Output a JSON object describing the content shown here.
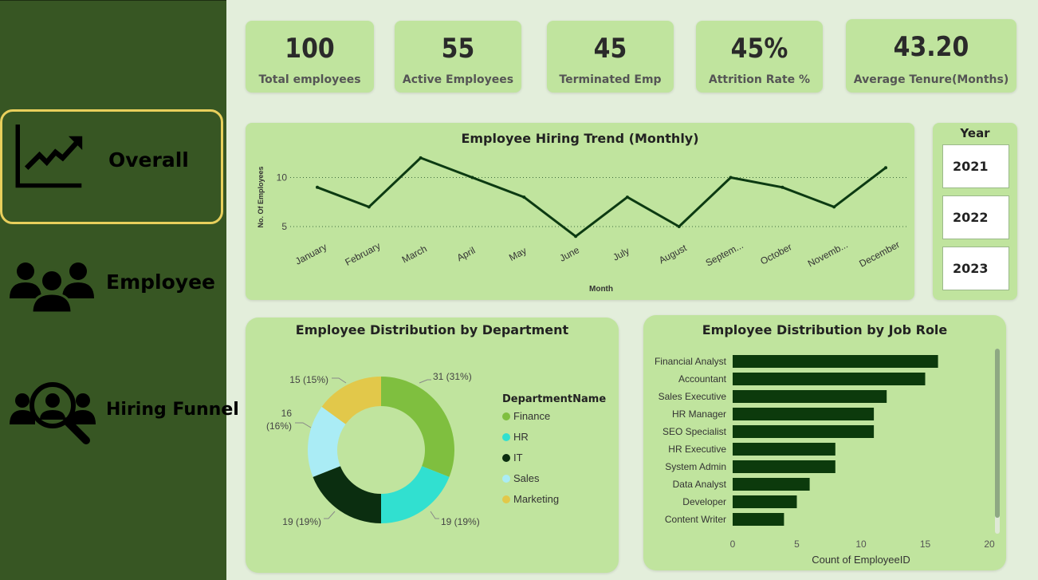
{
  "nav": {
    "overall": {
      "label": "Overall",
      "icon": "trend-chart-icon"
    },
    "employee": {
      "label": "Employee",
      "icon": "people-group-icon"
    },
    "hiring": {
      "label": "Hiring Funnel",
      "icon": "people-search-icon"
    }
  },
  "kpis": [
    {
      "value": "100",
      "label": "Total employees"
    },
    {
      "value": "55",
      "label": "Active Employees"
    },
    {
      "value": "45",
      "label": "Terminated Emp"
    },
    {
      "value": "45%",
      "label": "Attrition Rate %"
    },
    {
      "value": "43.20",
      "label": "Average Tenure(Months)"
    }
  ],
  "year_slicer": {
    "title": "Year",
    "options": [
      "2021",
      "2022",
      "2023"
    ]
  },
  "colors": {
    "sidebar": "#375623",
    "card": "#c0e49e",
    "line": "#0c3a12",
    "bar": "#0c3a0c",
    "active_border": "#e8cf5c"
  },
  "chart_data": [
    {
      "type": "line",
      "title": "Employee Hiring Trend (Monthly)",
      "xlabel": "Month",
      "ylabel": "No. Of Employees",
      "categories": [
        "January",
        "February",
        "March",
        "April",
        "May",
        "June",
        "July",
        "August",
        "Septem...",
        "October",
        "Novemb...",
        "December"
      ],
      "values": [
        9,
        7,
        12,
        10,
        8,
        4,
        8,
        5,
        10,
        9,
        7,
        11
      ],
      "yticks": [
        5,
        10
      ],
      "grid": "dotted"
    },
    {
      "type": "pie",
      "title": "Employee Distribution by Department",
      "legend_title": "DepartmentName",
      "legend_position": "right",
      "series": [
        {
          "name": "Finance",
          "value": 31,
          "label": "31 (31%)",
          "color": "#7fbf3f"
        },
        {
          "name": "HR",
          "value": 19,
          "label": "19 (19%)",
          "color": "#31e0d0"
        },
        {
          "name": "IT",
          "value": 19,
          "label": "19 (19%)",
          "color": "#0b2e10"
        },
        {
          "name": "Sales",
          "value": 16,
          "label": "16 (16%)",
          "color": "#aaecf5"
        },
        {
          "name": "Marketing",
          "value": 15,
          "label": "15 (15%)",
          "color": "#e2c84a"
        }
      ]
    },
    {
      "type": "bar",
      "orientation": "horizontal",
      "title": "Employee Distribution by Job Role",
      "xlabel": "Count of EmployeeID",
      "categories": [
        "Financial Analyst",
        "Accountant",
        "Sales Executive",
        "HR Manager",
        "SEO Specialist",
        "HR Executive",
        "System Admin",
        "Data Analyst",
        "Developer",
        "Content Writer"
      ],
      "values": [
        16,
        15,
        12,
        11,
        11,
        8,
        8,
        6,
        5,
        4
      ],
      "xlim": [
        0,
        20
      ],
      "xticks": [
        0,
        5,
        10,
        15,
        20
      ]
    }
  ]
}
